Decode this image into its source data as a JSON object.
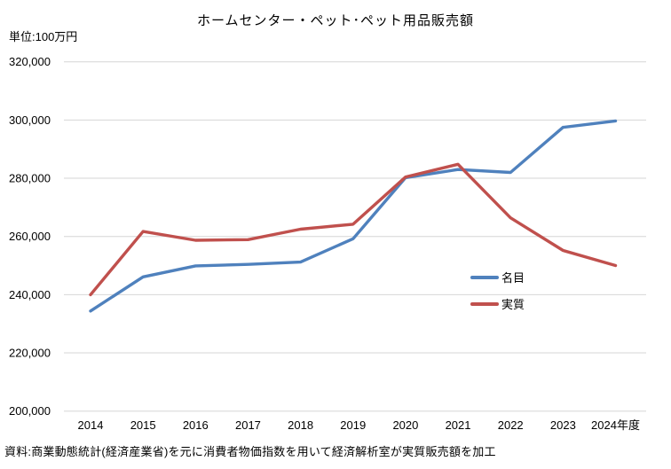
{
  "header": {
    "title": "ホームセンター・ペット･ペット用品販売額",
    "unit_label": "単位:100万円"
  },
  "footer": {
    "source": "資料:商業動態統計(経済産業省)を元に消費者物価指数を用いて経済解析室が実質販売額を加工"
  },
  "legend": {
    "items": [
      {
        "label": "名目",
        "color": "#4F81BD"
      },
      {
        "label": "実質",
        "color": "#C0504D"
      }
    ]
  },
  "chart_data": {
    "type": "line",
    "title": "ホームセンター・ペット･ペット用品販売額",
    "unit": "100万円",
    "categories": [
      "2014",
      "2015",
      "2016",
      "2017",
      "2018",
      "2019",
      "2020",
      "2021",
      "2022",
      "2023",
      "2024年度"
    ],
    "series": [
      {
        "name": "名目",
        "color": "#4F81BD",
        "values": [
          234400,
          246100,
          249900,
          250400,
          251200,
          259200,
          280200,
          283000,
          282000,
          297500,
          299700
        ]
      },
      {
        "name": "実質",
        "color": "#C0504D",
        "values": [
          240000,
          261700,
          258700,
          258900,
          262500,
          264200,
          280400,
          284800,
          266400,
          255200,
          250000
        ]
      }
    ],
    "ylim": [
      200000,
      320000
    ],
    "y_ticks": [
      {
        "value": 320000,
        "label": "320,000"
      },
      {
        "value": 300000,
        "label": "300,000"
      },
      {
        "value": 280000,
        "label": "280,000"
      },
      {
        "value": 260000,
        "label": "260,000"
      },
      {
        "value": 240000,
        "label": "240,000"
      },
      {
        "value": 220000,
        "label": "220,000"
      },
      {
        "value": 200000,
        "label": "200,000"
      }
    ],
    "grid": true,
    "gridline_color": "#D6D6D6",
    "legend_position": "inside-right"
  }
}
